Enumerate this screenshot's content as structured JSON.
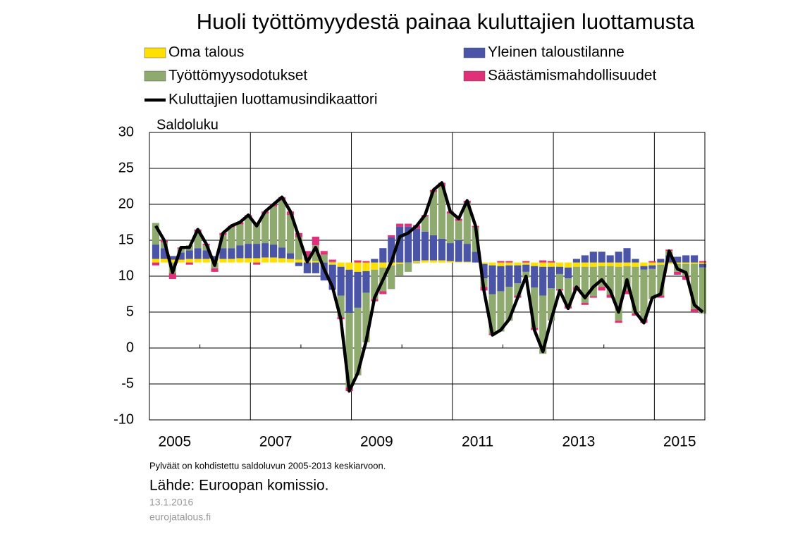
{
  "chart_data": {
    "type": "combo",
    "title": "Huoli työttömyydestä painaa kuluttajien luottamusta",
    "y_label": "Saldoluku",
    "note": "Pylväät on kohdistettu saldoluvun 2005-2013 keskiarvoon.",
    "source": "Lähde: Euroopan komissio.",
    "date": "13.1.2016",
    "site": "eurojatalous.fi",
    "bar_base": 11.9,
    "xlim": [
      2005,
      2016
    ],
    "xticks": [
      {
        "value": 2005.5,
        "label": "2005"
      },
      {
        "value": 2007.5,
        "label": "2007"
      },
      {
        "value": 2009.5,
        "label": "2009"
      },
      {
        "value": 2011.5,
        "label": "2011"
      },
      {
        "value": 2013.5,
        "label": "2013"
      },
      {
        "value": 2015.5,
        "label": "2015"
      }
    ],
    "xgrid": [
      2007,
      2009,
      2011,
      2013,
      2015
    ],
    "xminor": [
      2006,
      2008,
      2010,
      2012,
      2014
    ],
    "ylim": [
      -10,
      30
    ],
    "yticks": [
      -10,
      -5,
      0,
      5,
      10,
      15,
      20,
      25,
      30
    ],
    "grid": true,
    "x": [
      2005.125,
      2005.292,
      2005.458,
      2005.625,
      2005.792,
      2005.958,
      2006.125,
      2006.292,
      2006.458,
      2006.625,
      2006.792,
      2006.958,
      2007.125,
      2007.292,
      2007.458,
      2007.625,
      2007.792,
      2007.958,
      2008.125,
      2008.292,
      2008.458,
      2008.625,
      2008.792,
      2008.958,
      2009.125,
      2009.292,
      2009.458,
      2009.625,
      2009.792,
      2009.958,
      2010.125,
      2010.292,
      2010.458,
      2010.625,
      2010.792,
      2010.958,
      2011.125,
      2011.292,
      2011.458,
      2011.625,
      2011.792,
      2011.958,
      2012.125,
      2012.292,
      2012.458,
      2012.625,
      2012.792,
      2012.958,
      2013.125,
      2013.292,
      2013.458,
      2013.625,
      2013.792,
      2013.958,
      2014.125,
      2014.292,
      2014.458,
      2014.625,
      2014.792,
      2014.958,
      2015.125,
      2015.292,
      2015.458,
      2015.625,
      2015.792,
      2015.958
    ],
    "series": [
      {
        "name": "Oma talous",
        "type": "bar",
        "color": "#ffe000",
        "values": [
          0.5,
          0.5,
          0.4,
          0.4,
          0.5,
          0.5,
          0.5,
          0.4,
          0.5,
          0.5,
          0.6,
          0.6,
          0.6,
          0.7,
          0.7,
          0.6,
          0.5,
          0.4,
          0.3,
          0.2,
          0,
          -0.3,
          -0.6,
          -1,
          -1.3,
          -1.2,
          -1,
          -0.7,
          -0.4,
          -0.2,
          0,
          0.2,
          0.3,
          0.3,
          0.3,
          0.2,
          0.1,
          0.1,
          0,
          -0.2,
          -0.4,
          -0.5,
          -0.4,
          -0.4,
          -0.3,
          -0.5,
          -0.6,
          -0.6,
          -0.6,
          -0.7,
          -0.6,
          -0.6,
          -0.6,
          -0.5,
          -0.5,
          -0.6,
          -0.5,
          -0.6,
          -0.5,
          -0.4,
          -0.3,
          -0.2,
          -0.2,
          -0.2,
          -0.2,
          -0.2
        ]
      },
      {
        "name": "Yleinen taloustilanne",
        "type": "bar",
        "color": "#4a55a8",
        "values": [
          2,
          1.5,
          0.5,
          1,
          1.2,
          1.5,
          1.2,
          0.5,
          1.5,
          1.5,
          1.8,
          2,
          2,
          2,
          1.8,
          1.5,
          0.8,
          -0.5,
          -1.5,
          -1.5,
          -2.5,
          -3.5,
          -4,
          -6,
          -5,
          -3,
          0.5,
          2,
          3.5,
          5,
          5,
          4.5,
          4,
          3.5,
          3,
          2.5,
          3,
          2.5,
          1.5,
          -2,
          -4,
          -3.5,
          -3,
          -2.5,
          -1,
          -3,
          -4,
          -3,
          -1,
          -1.5,
          0.5,
          1,
          1.5,
          1.5,
          1,
          1.5,
          2,
          0.5,
          -0.5,
          -0.5,
          0.5,
          1,
          0.8,
          1,
          1,
          -0.5
        ]
      },
      {
        "name": "Työttömyysodotukset",
        "type": "bar",
        "color": "#8faa6e",
        "values": [
          3,
          0.8,
          -1.5,
          0.5,
          0.7,
          2.3,
          0.7,
          -0.8,
          1.8,
          2.9,
          2.9,
          3.7,
          2.8,
          4.1,
          5.3,
          6.5,
          5.3,
          3.1,
          0.5,
          2.2,
          1.1,
          0.1,
          -3,
          -10.4,
          -9.4,
          -6.9,
          -4.1,
          -3.3,
          -3.3,
          -1.6,
          -1.3,
          -0.1,
          2.1,
          6,
          7.3,
          4.1,
          2.7,
          5.7,
          3.4,
          -1.2,
          -5.5,
          -5.6,
          -4.7,
          -1.7,
          -0.8,
          -5.6,
          -8.1,
          -4.5,
          -2.1,
          -3.9,
          -2.8,
          -5,
          -4.1,
          -2.9,
          -4,
          -7.5,
          -3.4,
          -6.5,
          -6.9,
          -4.2,
          -4.3,
          0.6,
          -1.1,
          -1.7,
          -6.3,
          -6.4
        ]
      },
      {
        "name": "Säästämismahdollisuudet",
        "type": "bar",
        "color": "#e0307a",
        "values": [
          -0.4,
          0.3,
          -0.8,
          0.2,
          -0.3,
          0.3,
          0.2,
          -0.5,
          0.3,
          0.2,
          0.3,
          0.3,
          -0.3,
          0.3,
          0.3,
          0.5,
          0.5,
          0.6,
          0.8,
          1.2,
          0.5,
          0.3,
          -0.3,
          -0.5,
          0.3,
          0.2,
          -0.3,
          -0.4,
          0.3,
          0.4,
          0.4,
          0.5,
          0.2,
          0.3,
          0.5,
          0.3,
          0.3,
          0.3,
          0.2,
          -0.5,
          -0.2,
          0.2,
          0.2,
          -0.3,
          0.2,
          -0.3,
          0.3,
          0.2,
          -0.2,
          -0.3,
          -0.5,
          -0.3,
          -0.2,
          -0.5,
          -0.4,
          -0.3,
          -0.5,
          -0.3,
          -0.5,
          0.2,
          -0.3,
          0.2,
          -0.4,
          -0.5,
          -0.4,
          0.2
        ]
      },
      {
        "name": "Kuluttajien luottamusindikaattori",
        "type": "line",
        "color": "#000000",
        "values": [
          17,
          15,
          10.5,
          14,
          14,
          16.5,
          14.5,
          11.5,
          16,
          17,
          17.5,
          18.5,
          17,
          19,
          20,
          21,
          19,
          15.5,
          12,
          14,
          11,
          8.5,
          4,
          -6,
          -3.5,
          1,
          7,
          9.5,
          12,
          15.5,
          16,
          17,
          18.5,
          22,
          23,
          19,
          18,
          20.5,
          17,
          8,
          1.8,
          2.5,
          4,
          7,
          10,
          2.5,
          -0.5,
          4,
          8,
          5.5,
          8.5,
          7,
          8.5,
          9.5,
          8,
          5,
          9.5,
          5,
          3.5,
          7,
          7.5,
          13.5,
          11,
          10.5,
          6,
          5
        ]
      }
    ]
  }
}
